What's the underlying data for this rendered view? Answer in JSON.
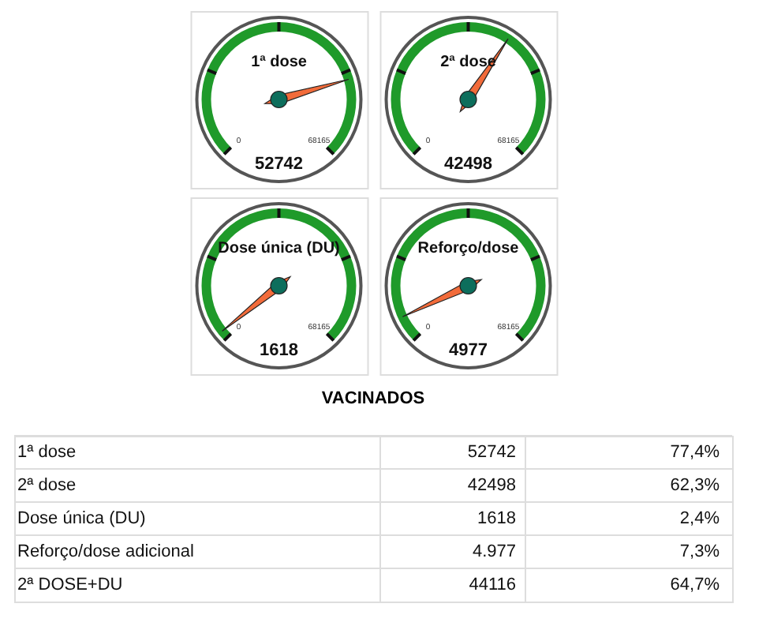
{
  "chart_data": [
    {
      "type": "other",
      "title": "1ª dose",
      "values": [
        52742
      ],
      "annotations": [
        "0",
        "68165"
      ],
      "data_labels": true
    },
    {
      "type": "other",
      "title": "2ª dose",
      "values": [
        42498
      ],
      "annotations": [
        "0",
        "68165"
      ],
      "data_labels": true
    },
    {
      "type": "other",
      "title": "Dose única (DU)",
      "values": [
        1618
      ],
      "annotations": [
        "0",
        "68165"
      ],
      "data_labels": true
    },
    {
      "type": "other",
      "title": "Reforço/dose",
      "values": [
        4977
      ],
      "annotations": [
        "0",
        "68165"
      ],
      "data_labels": true
    },
    {
      "type": "other",
      "title": "VACINADOS",
      "annotations": [
        "1ª dose",
        "52742",
        "77,4%",
        "2ª dose",
        "42498",
        "62,3%",
        "Dose única (DU)",
        "1618",
        "2,4%",
        "Reforço/dose adicional",
        "4.977",
        "7,3%",
        "2ª DOSE+DU",
        "44116",
        "64,7%"
      ]
    }
  ]
}
